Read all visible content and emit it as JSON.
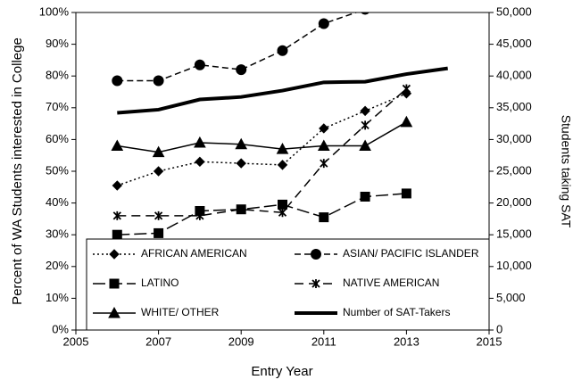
{
  "chart_data": {
    "type": "line",
    "x_label": "Entry Year",
    "y_label": "Percent of WA Students interested in College",
    "y2_label": "Students taking SAT",
    "x": [
      2006,
      2007,
      2008,
      2009,
      2010,
      2011,
      2012,
      2013,
      2014
    ],
    "xlim": [
      2005,
      2015
    ],
    "xticks": [
      2005,
      2007,
      2009,
      2011,
      2013,
      2015
    ],
    "ylim": [
      0,
      100
    ],
    "yticks": [
      {
        "value": 0,
        "label": "0%"
      },
      {
        "value": 10,
        "label": "10%"
      },
      {
        "value": 20,
        "label": "20%"
      },
      {
        "value": 30,
        "label": "30%"
      },
      {
        "value": 40,
        "label": "40%"
      },
      {
        "value": 50,
        "label": "50%"
      },
      {
        "value": 60,
        "label": "60%"
      },
      {
        "value": 70,
        "label": "70%"
      },
      {
        "value": 80,
        "label": "80%"
      },
      {
        "value": 90,
        "label": "90%"
      },
      {
        "value": 100,
        "label": "100%"
      }
    ],
    "y2lim": [
      0,
      50000
    ],
    "y2ticks": [
      0,
      {
        "value": 5000,
        "label": "5,000"
      },
      {
        "value": 10000,
        "label": "10,000"
      },
      {
        "value": 15000,
        "label": "15,000"
      },
      {
        "value": 20000,
        "label": "20,000"
      },
      {
        "value": 25000,
        "label": "25,000"
      },
      {
        "value": 30000,
        "label": "30,000"
      },
      {
        "value": 35000,
        "label": "35,000"
      },
      {
        "value": 40000,
        "label": "40,000"
      },
      {
        "value": 45000,
        "label": "45,000"
      },
      {
        "value": 50000,
        "label": "50,000"
      }
    ],
    "series": [
      {
        "name": "AFRICAN AMERICAN",
        "color": "#000000",
        "values": [
          45.5,
          50,
          53,
          52.5,
          52,
          63.5,
          69,
          74.5,
          null
        ]
      },
      {
        "name": "ASIAN/ PACIFIC ISLANDER",
        "color": "#000000",
        "values": [
          78.5,
          78.5,
          83.5,
          82,
          88,
          96.5,
          101,
          null,
          null
        ]
      },
      {
        "name": "LATINO",
        "color": "#000000",
        "values": [
          30,
          30.5,
          37.5,
          38,
          39.5,
          35.5,
          42,
          43,
          null
        ]
      },
      {
        "name": "NATIVE AMERICAN",
        "color": "#000000",
        "values": [
          36,
          36,
          36,
          38,
          37,
          52.5,
          64.5,
          76,
          null
        ]
      },
      {
        "name": "WHITE/ OTHER",
        "color": "#000000",
        "values": [
          58,
          56,
          59,
          58.5,
          57,
          58,
          58,
          65.5,
          null
        ]
      },
      {
        "name": "Number of SAT-Takers",
        "color": "#000000",
        "axis": "y2",
        "values": [
          34200,
          34700,
          36300,
          36700,
          37700,
          39000,
          39100,
          40300,
          41200
        ]
      }
    ]
  }
}
